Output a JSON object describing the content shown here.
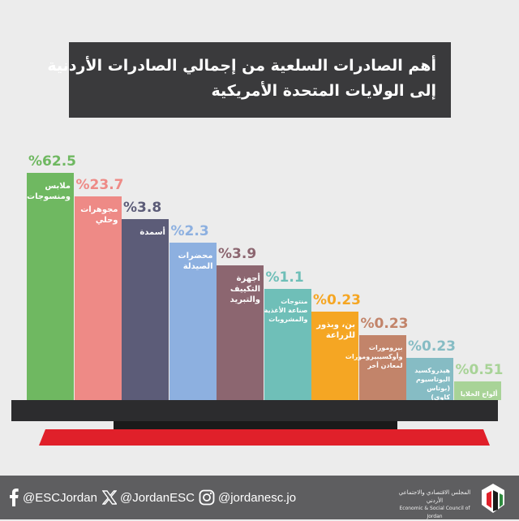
{
  "title": {
    "line1": "أهم الصادرات السلعية من إجمالي الصادرات الأردنية",
    "line2": "إلى الولايات المتحدة الأمريكية"
  },
  "colors": {
    "background": "#ececec",
    "title_box": "#3a3a3c",
    "base": "#2c2c2e",
    "accent_red": "#e0202a",
    "footer": "#5e5e60"
  },
  "chart_data": {
    "type": "bar",
    "categories": [
      "ملابس ومنسوجات",
      "مجوهرات وحلي",
      "أسمدة",
      "محضرات الصيدلة",
      "أجهزة التكييف والتبريد",
      "منتوجات صناعة الأغذية والمشروبات",
      "بن، وبذور للزراعة",
      "بيرومورات وأوكسيبيرومورات لمعادن أخر",
      "هيدروكسيد البوتاسيوم (بوتاس كاوي)",
      "ألواح الخلايا الضوئية الفولتائية"
    ],
    "values": [
      62.5,
      23.7,
      3.8,
      2.3,
      3.9,
      1.1,
      0.23,
      0.23,
      0.23,
      0.51
    ],
    "value_labels": [
      "%62.5",
      "%23.7",
      "%3.8",
      "%2.3",
      "%3.9",
      "%1.1",
      "%0.23",
      "%0.23",
      "%0.23",
      "%0.51"
    ],
    "bar_colors": [
      "#6fb861",
      "#ee8a86",
      "#5c5c78",
      "#8db0e0",
      "#8c6670",
      "#6fbfb8",
      "#f5a623",
      "#c2846a",
      "#86bcc4",
      "#a8d397"
    ],
    "value_colors": [
      "#6fb861",
      "#ee8a86",
      "#5c5c78",
      "#8db0e0",
      "#8c6670",
      "#6fbfb8",
      "#f5a623",
      "#c2846a",
      "#86bcc4",
      "#a8d397"
    ],
    "grid": false,
    "legend": "none",
    "xlabel": "",
    "ylabel": ""
  },
  "footer": {
    "facebook": "@ESCJordan",
    "x": "@JordanESC",
    "instagram": "@jordanesc.jo",
    "logo_ar": "المجلس الاقتصادي والاجتماعي الأردني",
    "logo_en": "Economic & Social Council of Jordan"
  },
  "icons": [
    "facebook-icon",
    "x-icon",
    "instagram-icon",
    "esc-logo"
  ]
}
